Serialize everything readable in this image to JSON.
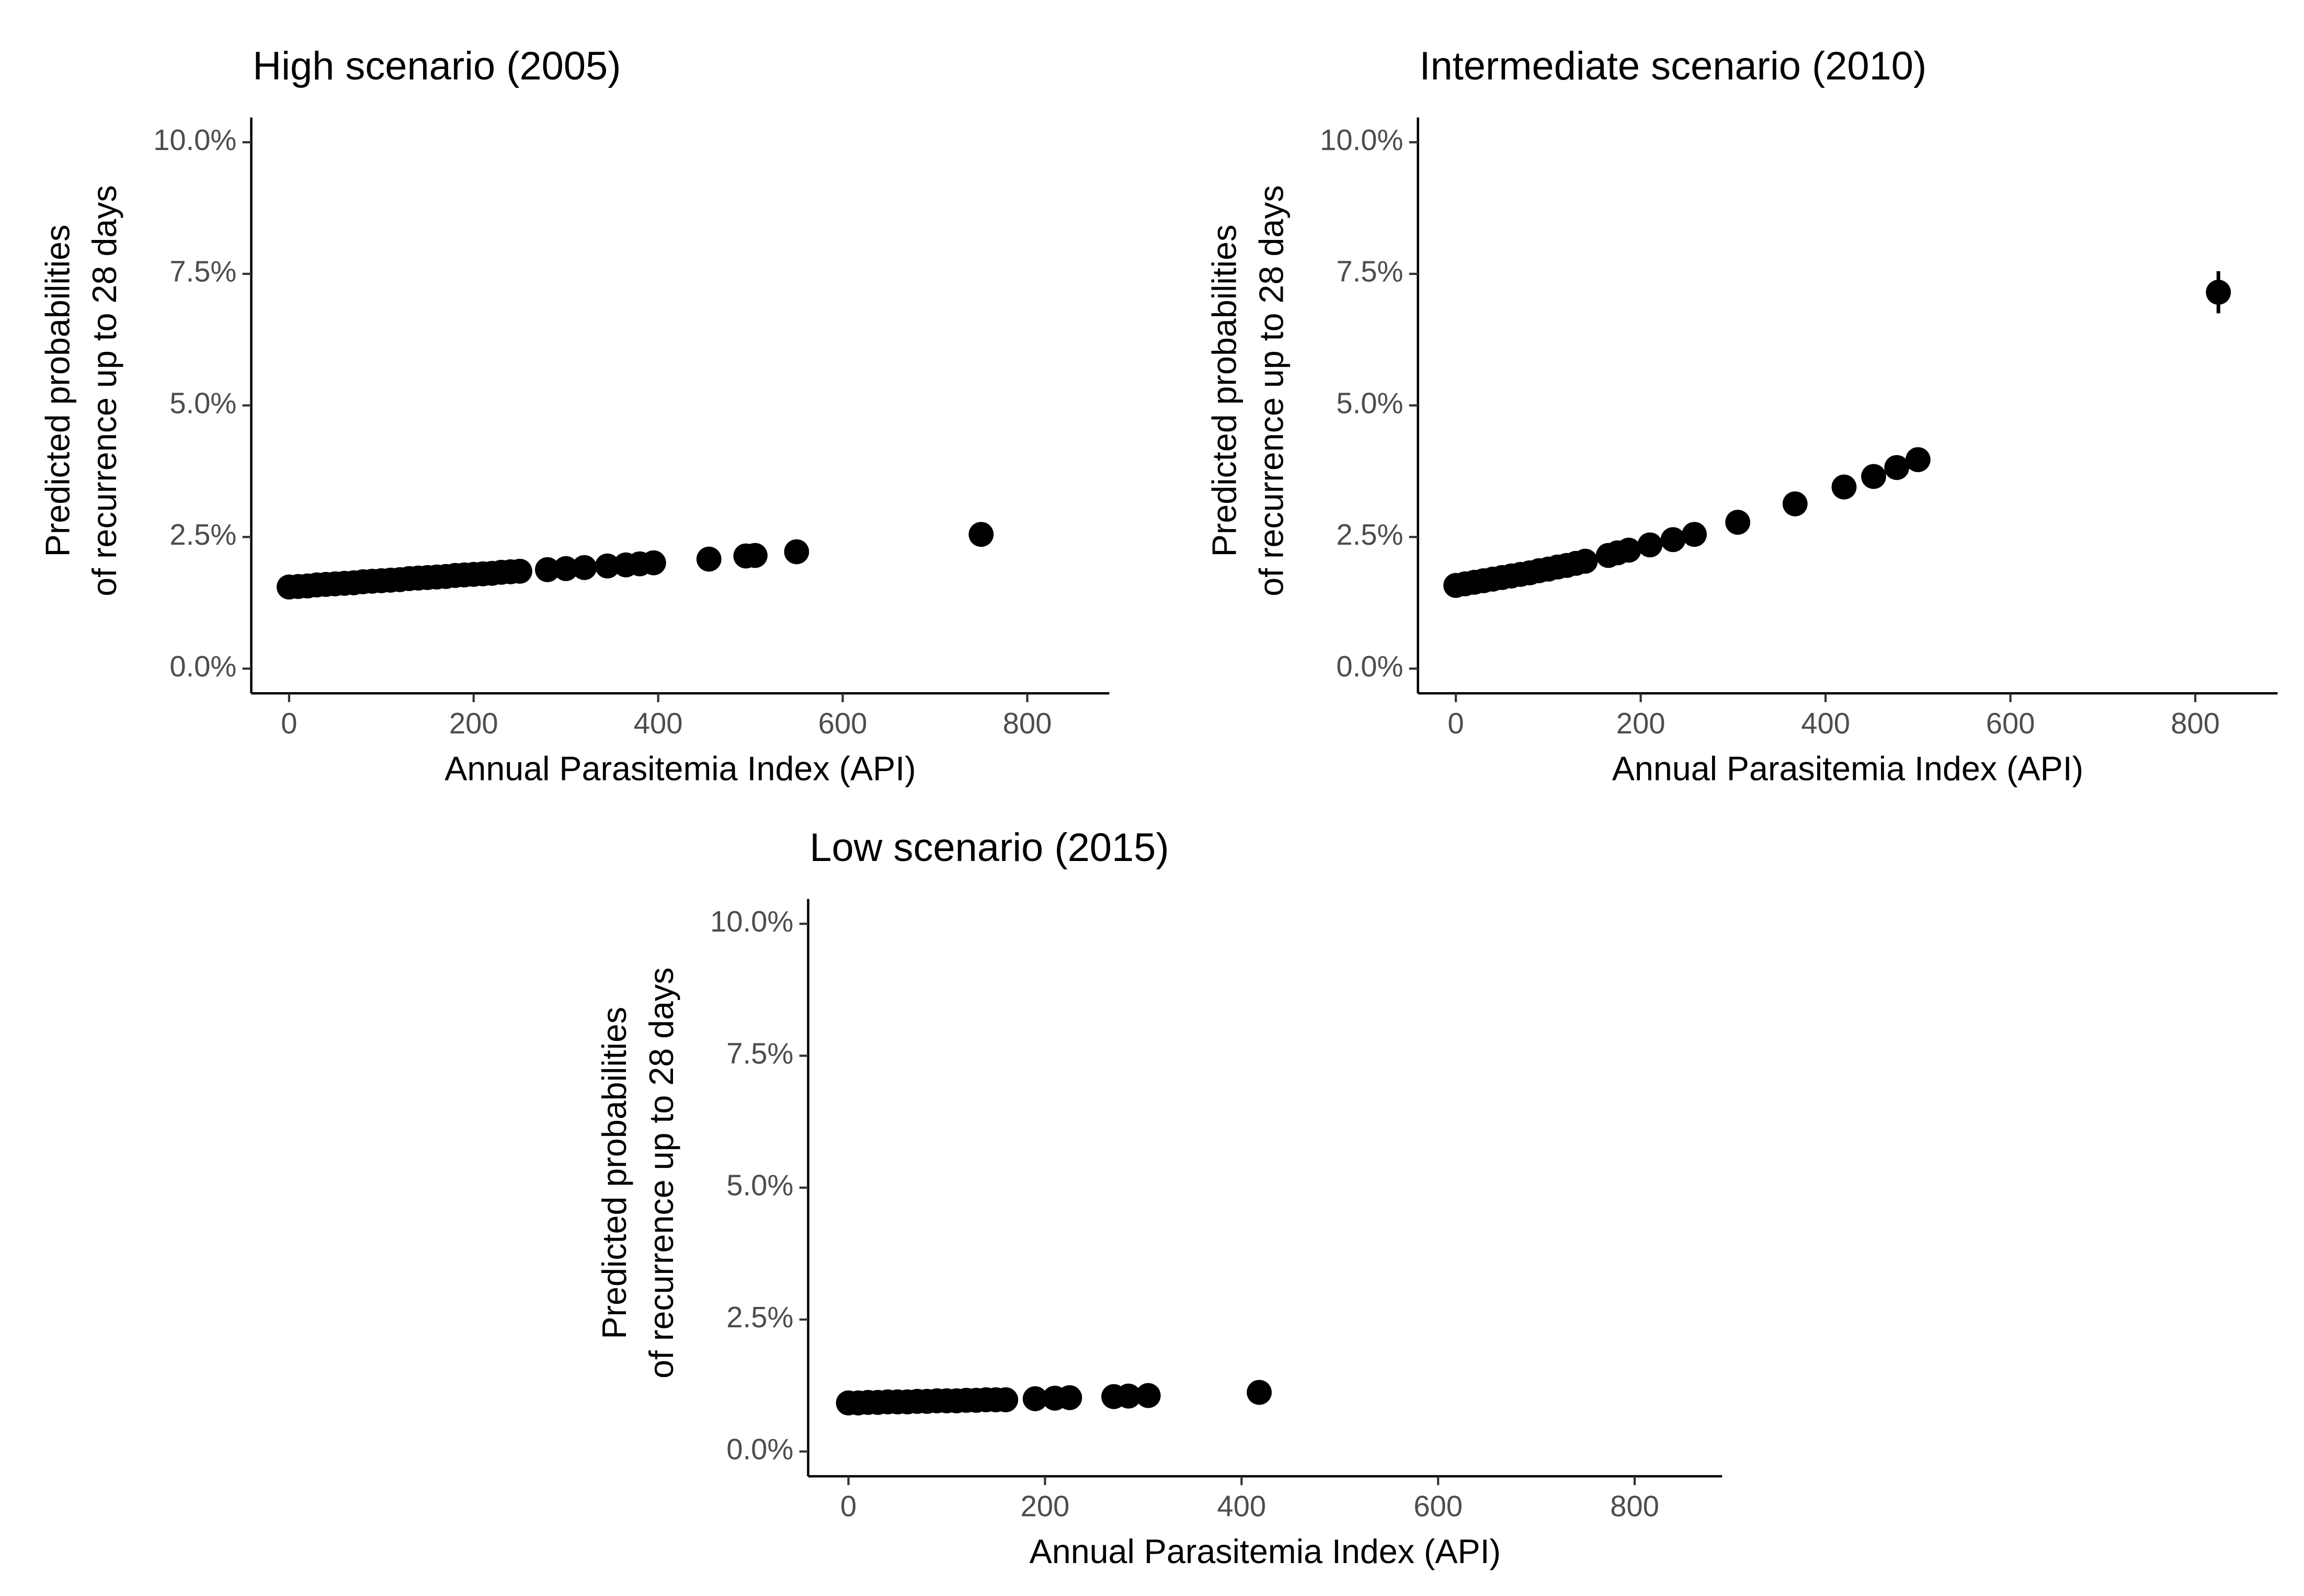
{
  "chart_data": [
    {
      "type": "scatter",
      "title": "High scenario (2005)",
      "xlabel": "Annual Parasitemia Index (API)",
      "ylabel": [
        "Predicted probabilities",
        "of recurrence up to 28 days"
      ],
      "color": "#000000",
      "x": [
        0,
        10,
        20,
        30,
        40,
        50,
        60,
        70,
        80,
        90,
        100,
        110,
        120,
        130,
        140,
        150,
        160,
        170,
        180,
        190,
        200,
        210,
        220,
        230,
        240,
        250,
        280,
        300,
        320,
        345,
        365,
        380,
        395,
        455,
        495,
        505,
        550,
        750
      ],
      "y": [
        1.55,
        1.56,
        1.57,
        1.59,
        1.6,
        1.61,
        1.62,
        1.63,
        1.65,
        1.66,
        1.67,
        1.68,
        1.69,
        1.71,
        1.72,
        1.73,
        1.74,
        1.75,
        1.77,
        1.78,
        1.79,
        1.8,
        1.81,
        1.83,
        1.84,
        1.85,
        1.88,
        1.9,
        1.92,
        1.95,
        1.97,
        1.99,
        2.01,
        2.08,
        2.14,
        2.15,
        2.22,
        2.55
      ],
      "xlim": [
        -41,
        889
      ],
      "xticks": [
        0,
        200,
        400,
        600,
        800
      ],
      "ylim": [
        -0.47,
        10.47
      ],
      "yticks": [
        {
          "value": 0,
          "label": "0.0%"
        },
        {
          "value": 2.5,
          "label": "2.5%"
        },
        {
          "value": 5,
          "label": "5.0%"
        },
        {
          "value": 7.5,
          "label": "7.5%"
        },
        {
          "value": 10,
          "label": "10.0%"
        }
      ],
      "grid": false
    },
    {
      "type": "scatter",
      "title": "Intermediate scenario (2010)",
      "xlabel": "Annual Parasitemia Index (API)",
      "ylabel": [
        "Predicted probabilities",
        "of recurrence up to 28 days"
      ],
      "color": "#000000",
      "x": [
        0,
        10,
        20,
        30,
        40,
        50,
        60,
        70,
        80,
        90,
        100,
        110,
        120,
        130,
        140,
        165,
        175,
        187,
        210,
        235,
        258,
        305,
        367,
        420,
        452,
        477,
        500,
        825
      ],
      "y": [
        1.58,
        1.61,
        1.64,
        1.67,
        1.7,
        1.73,
        1.76,
        1.79,
        1.82,
        1.86,
        1.89,
        1.93,
        1.96,
        2.0,
        2.04,
        2.15,
        2.2,
        2.25,
        2.35,
        2.45,
        2.55,
        2.78,
        3.13,
        3.45,
        3.65,
        3.82,
        3.97,
        7.15
      ],
      "errors": [
        null,
        null,
        null,
        null,
        null,
        null,
        null,
        null,
        null,
        null,
        null,
        null,
        null,
        null,
        null,
        null,
        null,
        null,
        null,
        null,
        null,
        null,
        null,
        null,
        null,
        null,
        null,
        0.4
      ],
      "xlim": [
        -41,
        889
      ],
      "xticks": [
        0,
        200,
        400,
        600,
        800
      ],
      "ylim": [
        -0.47,
        10.47
      ],
      "yticks": [
        {
          "value": 0,
          "label": "0.0%"
        },
        {
          "value": 2.5,
          "label": "2.5%"
        },
        {
          "value": 5,
          "label": "5.0%"
        },
        {
          "value": 7.5,
          "label": "7.5%"
        },
        {
          "value": 10,
          "label": "10.0%"
        }
      ],
      "grid": false
    },
    {
      "type": "scatter",
      "title": "Low scenario (2015)",
      "xlabel": "Annual Parasitemia Index (API)",
      "ylabel": [
        "Predicted probabilities",
        "of recurrence up to 28 days"
      ],
      "color": "#000000",
      "x": [
        0,
        10,
        20,
        30,
        40,
        50,
        60,
        70,
        80,
        90,
        100,
        110,
        120,
        130,
        140,
        150,
        160,
        190,
        210,
        225,
        270,
        285,
        305,
        418
      ],
      "y": [
        0.92,
        0.92,
        0.93,
        0.93,
        0.94,
        0.94,
        0.94,
        0.95,
        0.95,
        0.96,
        0.96,
        0.96,
        0.97,
        0.97,
        0.98,
        0.98,
        0.98,
        1.0,
        1.01,
        1.02,
        1.04,
        1.05,
        1.06,
        1.12
      ],
      "xlim": [
        -41,
        889
      ],
      "xticks": [
        0,
        200,
        400,
        600,
        800
      ],
      "ylim": [
        -0.47,
        10.47
      ],
      "yticks": [
        {
          "value": 0,
          "label": "0.0%"
        },
        {
          "value": 2.5,
          "label": "2.5%"
        },
        {
          "value": 5,
          "label": "5.0%"
        },
        {
          "value": 7.5,
          "label": "7.5%"
        },
        {
          "value": 10,
          "label": "10.0%"
        }
      ],
      "grid": false
    }
  ]
}
